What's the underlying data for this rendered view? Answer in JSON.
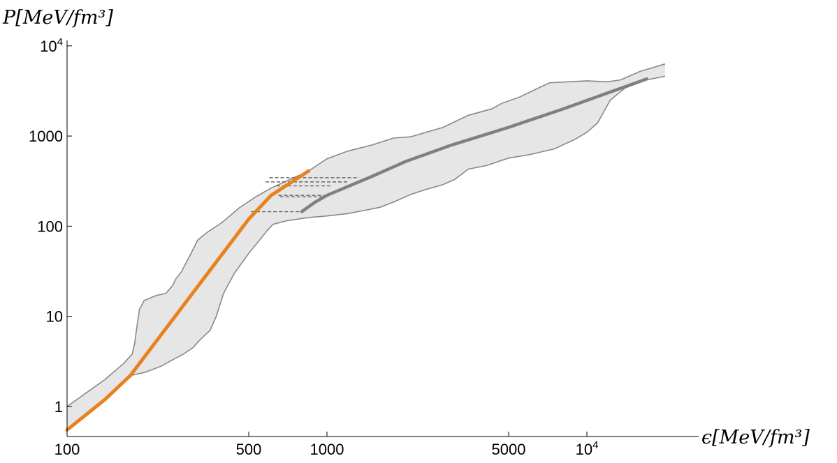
{
  "chart_data": {
    "type": "line",
    "title": "",
    "xlabel": "ϵ[MeV/fm³]",
    "ylabel": "P[MeV/fm³]",
    "xscale": "log",
    "yscale": "log",
    "xlim": [
      100,
      20000
    ],
    "ylim": [
      0.5,
      12000
    ],
    "grid": false,
    "legend": "none",
    "x_ticks": [
      {
        "value": 100,
        "label": "100"
      },
      {
        "value": 500,
        "label": "500"
      },
      {
        "value": 1000,
        "label": "1000"
      },
      {
        "value": 5000,
        "label": "5000"
      },
      {
        "value": 10000,
        "label": "10",
        "sup": "4"
      }
    ],
    "y_ticks": [
      {
        "value": 1,
        "label": "1"
      },
      {
        "value": 10,
        "label": "10"
      },
      {
        "value": 100,
        "label": "100"
      },
      {
        "value": 1000,
        "label": "1000"
      },
      {
        "value": 10000,
        "label": "10",
        "sup": "4"
      }
    ],
    "colors": {
      "band_fill": "#e6e6e6",
      "band_edge": "#888888",
      "orange": "#e8821e",
      "gray_line": "#808080",
      "dashed": "#666666"
    },
    "band_upper": [
      [
        100,
        1.0
      ],
      [
        140,
        2.0
      ],
      [
        165,
        3.0
      ],
      [
        178,
        3.8
      ],
      [
        182,
        5.0
      ],
      [
        186,
        8.0
      ],
      [
        190,
        12.0
      ],
      [
        193,
        13.0
      ],
      [
        198,
        15.0
      ],
      [
        220,
        17.0
      ],
      [
        240,
        18.0
      ],
      [
        255,
        22.0
      ],
      [
        262,
        26.0
      ],
      [
        275,
        31.0
      ],
      [
        288,
        40.0
      ],
      [
        300,
        50.0
      ],
      [
        318,
        70.0
      ],
      [
        345,
        85.0
      ],
      [
        395,
        110.0
      ],
      [
        460,
        160.0
      ],
      [
        530,
        210.0
      ],
      [
        610,
        265.0
      ],
      [
        720,
        330.0
      ],
      [
        850,
        410.0
      ],
      [
        1000,
        560.0
      ],
      [
        1200,
        680.0
      ],
      [
        1500,
        800.0
      ],
      [
        1800,
        950.0
      ],
      [
        2100,
        980.0
      ],
      [
        2800,
        1250.0
      ],
      [
        3500,
        1700.0
      ],
      [
        4300,
        2000.0
      ],
      [
        4700,
        2300.0
      ],
      [
        5500,
        2700.0
      ],
      [
        6500,
        3400.0
      ],
      [
        7200,
        3900.0
      ],
      [
        8500,
        4000.0
      ],
      [
        10000,
        4100.0
      ],
      [
        12000,
        4000.0
      ],
      [
        13500,
        4200.0
      ],
      [
        16000,
        5200.0
      ],
      [
        20000,
        6300.0
      ]
    ],
    "band_lower": [
      [
        100,
        0.55
      ],
      [
        140,
        1.2
      ],
      [
        175,
        2.2
      ],
      [
        200,
        2.4
      ],
      [
        230,
        2.8
      ],
      [
        250,
        3.2
      ],
      [
        280,
        3.8
      ],
      [
        305,
        4.5
      ],
      [
        325,
        5.5
      ],
      [
        355,
        7.0
      ],
      [
        375,
        10.0
      ],
      [
        400,
        18.0
      ],
      [
        440,
        30.0
      ],
      [
        500,
        50.0
      ],
      [
        550,
        70.0
      ],
      [
        590,
        90.0
      ],
      [
        620,
        105.0
      ],
      [
        700,
        115.0
      ],
      [
        850,
        125.0
      ],
      [
        1000,
        130.0
      ],
      [
        1200,
        138.0
      ],
      [
        1400,
        150.0
      ],
      [
        1600,
        162.0
      ],
      [
        1800,
        185.0
      ],
      [
        2100,
        225.0
      ],
      [
        2400,
        255.0
      ],
      [
        2800,
        290.0
      ],
      [
        3100,
        330.0
      ],
      [
        3500,
        430.0
      ],
      [
        4100,
        470.0
      ],
      [
        5000,
        570.0
      ],
      [
        6000,
        620.0
      ],
      [
        7500,
        720.0
      ],
      [
        9000,
        920.0
      ],
      [
        10000,
        1100.0
      ],
      [
        11000,
        1400.0
      ],
      [
        12300,
        2500.0
      ],
      [
        14000,
        3400.0
      ],
      [
        17000,
        4200.0
      ],
      [
        20000,
        4600.0
      ]
    ],
    "orange_line": [
      [
        100,
        0.55
      ],
      [
        140,
        1.2
      ],
      [
        175,
        2.2
      ],
      [
        500,
        120.0
      ],
      [
        610,
        220.0
      ],
      [
        850,
        410.0
      ]
    ],
    "gray_line": [
      [
        800,
        145.0
      ],
      [
        900,
        185.0
      ],
      [
        1000,
        220.0
      ],
      [
        1500,
        360.0
      ],
      [
        2000,
        520.0
      ],
      [
        3000,
        790.0
      ],
      [
        5000,
        1250.0
      ],
      [
        8000,
        1970.0
      ],
      [
        12000,
        3000.0
      ],
      [
        17000,
        4300.0
      ]
    ],
    "dashed_lines": [
      {
        "x": [
          600,
          1330
        ],
        "y": 345.0
      },
      {
        "x": [
          580,
          1200
        ],
        "y": 310.0
      },
      {
        "x": [
          640,
          1050
        ],
        "y": 280.0
      },
      {
        "x": [
          650,
          1000
        ],
        "y": 220.0
      },
      {
        "x": [
          660,
          960
        ],
        "y": 212.0
      },
      {
        "x": [
          510,
          800
        ],
        "y": 145.0
      }
    ]
  }
}
